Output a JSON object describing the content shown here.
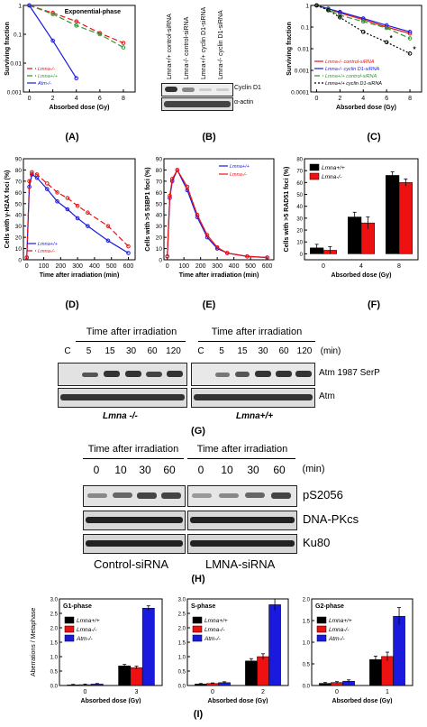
{
  "panels": {
    "A": {
      "label": "(A)",
      "chart_index": 0
    },
    "B": {
      "label": "(B)",
      "lanes": [
        "Lmna+/+ control-siRNA",
        "Lmna-/- control-siRNA",
        "Lmna+/+ cyclin D1-siRNA",
        "Lmna-/- cyclin D1-siRNA"
      ],
      "rows": [
        "Cyclin D1",
        "α-actin"
      ]
    },
    "C": {
      "label": "(C)",
      "chart_index": 1
    },
    "D": {
      "label": "(D)",
      "chart_index": 2
    },
    "E": {
      "label": "(E)",
      "chart_index": 3
    },
    "F": {
      "label": "(F)",
      "chart_index": 4
    },
    "G": {
      "label": "(G)",
      "title_left": "Time after irradiation",
      "title_right": "Time after irradiation",
      "lanes_left": [
        "C",
        "5",
        "15",
        "30",
        "60",
        "120"
      ],
      "lanes_right": [
        "C",
        "5",
        "15",
        "30",
        "60",
        "120"
      ],
      "unit": "(min)",
      "rows": [
        "Atm 1987 SerP",
        "Atm"
      ],
      "cond_left": "Lmna -/-",
      "cond_right": "Lmna+/+"
    },
    "H": {
      "label": "(H)",
      "title_left": "Time after irradiation",
      "title_right": "Time after irradiation",
      "lanes_left": [
        "0",
        "10",
        "30",
        "60"
      ],
      "lanes_right": [
        "0",
        "10",
        "30",
        "60"
      ],
      "unit": "(min)",
      "rows": [
        "pS2056",
        "DNA-PKcs",
        "Ku80"
      ],
      "cond_left": "Control-siRNA",
      "cond_right": "LMNA-siRNA"
    },
    "I": {
      "label": "(I)",
      "ylabel": "Aberrations / Metaphase"
    }
  },
  "colors": {
    "lmna_ko": "#ee1111",
    "lmna_wt": "#000000",
    "atm": "#1a1adf",
    "green": "#2e9a2e",
    "blue": "#1a1adf"
  },
  "chart_data": [
    {
      "type": "line",
      "title": "Exponential-phase",
      "xlabel": "Absorbed dose (Gy)",
      "ylabel": "Surviving fraction",
      "yscale": "log",
      "ylim": [
        0.001,
        1
      ],
      "xlim": [
        -0.5,
        9
      ],
      "x_ticks": [
        0,
        2,
        4,
        6,
        8
      ],
      "y_ticks": [
        "0.001",
        "0.01",
        "0.1",
        "1"
      ],
      "legend": "bottom-left",
      "series": [
        {
          "name": "Lmna-/-",
          "color": "#ee1111",
          "dash": "6,3",
          "x": [
            0,
            2,
            4,
            6,
            8
          ],
          "y": [
            1.0,
            0.55,
            0.28,
            0.11,
            0.05
          ]
        },
        {
          "name": "Lmna+/+",
          "color": "#2e9a2e",
          "dash": "6,3",
          "x": [
            0,
            2,
            4,
            6,
            8
          ],
          "y": [
            1.0,
            0.5,
            0.2,
            0.1,
            0.035
          ]
        },
        {
          "name": "Atm-/-",
          "color": "#1a1adf",
          "dash": "",
          "x": [
            0,
            2,
            4
          ],
          "y": [
            1.0,
            0.06,
            0.003
          ]
        }
      ]
    },
    {
      "type": "line",
      "title": "",
      "xlabel": "Absorbed dose (Gy)",
      "ylabel": "Surviving fraction",
      "yscale": "log",
      "ylim": [
        0.0001,
        1
      ],
      "xlim": [
        -0.5,
        9
      ],
      "x_ticks": [
        0,
        2,
        4,
        6,
        8
      ],
      "y_ticks": [
        "0.0001",
        "0.001",
        "0.01",
        "0.1",
        "1"
      ],
      "legend": "bottom-left",
      "series": [
        {
          "name": "Lmna-/- control-siRNA",
          "color": "#ee1111",
          "dash": "",
          "x": [
            0,
            1,
            2,
            4,
            6,
            8
          ],
          "y": [
            1.0,
            0.7,
            0.45,
            0.22,
            0.1,
            0.05
          ]
        },
        {
          "name": "Lmna-/- cyclin D1-siRNA",
          "color": "#1a1adf",
          "dash": "",
          "x": [
            0,
            1,
            2,
            4,
            6,
            8
          ],
          "y": [
            1.0,
            0.7,
            0.5,
            0.25,
            0.12,
            0.06
          ]
        },
        {
          "name": "Lmna+/+ control-siRNA",
          "color": "#2e9a2e",
          "dash": "6,3",
          "x": [
            0,
            1,
            2,
            4,
            6,
            8
          ],
          "y": [
            1.0,
            0.65,
            0.35,
            0.18,
            0.09,
            0.03
          ]
        },
        {
          "name": "Lmna+/+ cyclin D1-siRNA",
          "color": "#000000",
          "dash": "2,2",
          "x": [
            0,
            1,
            2,
            4,
            6,
            8
          ],
          "y": [
            1.0,
            0.6,
            0.28,
            0.06,
            0.02,
            0.006
          ]
        }
      ],
      "annotations": [
        "*",
        "*"
      ]
    },
    {
      "type": "line",
      "title": "",
      "xlabel": "Time after irradiation (min)",
      "ylabel": "Cells with γ-H2AX foci (%)",
      "ylim": [
        0,
        90
      ],
      "xlim": [
        -20,
        640
      ],
      "x_ticks": [
        0,
        100,
        200,
        300,
        400,
        500,
        600
      ],
      "y_ticks": [
        0,
        10,
        20,
        30,
        40,
        50,
        60,
        70,
        80,
        90
      ],
      "legend": "bottom-left",
      "series": [
        {
          "name": "Lmna+/+",
          "color": "#1a1adf",
          "dash": "",
          "x": [
            0,
            15,
            30,
            60,
            120,
            180,
            240,
            300,
            360,
            480,
            600
          ],
          "y": [
            2,
            65,
            76,
            73,
            63,
            52,
            45,
            37,
            30,
            17,
            6
          ]
        },
        {
          "name": "Lmna-/-",
          "color": "#ee1111",
          "dash": "6,3",
          "x": [
            0,
            15,
            30,
            60,
            120,
            180,
            240,
            300,
            360,
            480,
            600
          ],
          "y": [
            2,
            70,
            78,
            76,
            68,
            60,
            55,
            48,
            42,
            30,
            12
          ]
        }
      ]
    },
    {
      "type": "line",
      "title": "",
      "xlabel": "Time after irradiation (min)",
      "ylabel": "Cells with >5 53BP1 foci (%)",
      "ylim": [
        0,
        90
      ],
      "xlim": [
        -20,
        640
      ],
      "x_ticks": [
        0,
        100,
        200,
        300,
        400,
        500,
        600
      ],
      "y_ticks": [
        0,
        10,
        20,
        30,
        40,
        50,
        60,
        70,
        80,
        90
      ],
      "legend": "top-right",
      "series": [
        {
          "name": "Lmna+/+",
          "color": "#1a1adf",
          "dash": "",
          "x": [
            0,
            15,
            30,
            60,
            120,
            180,
            240,
            300,
            360,
            480,
            600
          ],
          "y": [
            3,
            55,
            70,
            80,
            62,
            38,
            20,
            10,
            6,
            3,
            2
          ]
        },
        {
          "name": "Lmna-/-",
          "color": "#ee1111",
          "dash": "",
          "x": [
            0,
            15,
            30,
            60,
            120,
            180,
            240,
            300,
            360,
            480,
            600
          ],
          "y": [
            3,
            57,
            72,
            80,
            65,
            40,
            22,
            11,
            6,
            3,
            2
          ]
        }
      ]
    },
    {
      "type": "bar",
      "title": "",
      "xlabel": "Absorbed dose (Gy)",
      "ylabel": "Cells with >5 RAD51 foci (%)",
      "categories": [
        "0",
        "4",
        "8"
      ],
      "ylim": [
        -5,
        80
      ],
      "y_ticks": [
        0,
        10,
        20,
        30,
        40,
        50,
        60,
        70,
        80
      ],
      "legend": "top-left",
      "series": [
        {
          "name": "Lmna+/+",
          "color": "#000000",
          "values": [
            5,
            31,
            66
          ],
          "errors": [
            3,
            4,
            3
          ]
        },
        {
          "name": "Lmna-/-",
          "color": "#ee1111",
          "values": [
            3,
            26,
            60
          ],
          "errors": [
            3,
            5,
            3
          ]
        }
      ]
    },
    {
      "type": "bar",
      "title": "G1-phase",
      "xlabel": "Absorbed dose (Gy)",
      "ylabel": "",
      "categories": [
        "0",
        "3"
      ],
      "ylim": [
        0,
        3
      ],
      "y_ticks": [
        "0.0",
        "0.5",
        "1.0",
        "1.5",
        "2.0",
        "2.5",
        "3.0"
      ],
      "legend": "top-left",
      "series": [
        {
          "name": "Lmna+/+",
          "color": "#000000",
          "values": [
            0.02,
            0.68
          ],
          "errors": [
            0.02,
            0.05
          ]
        },
        {
          "name": "Lmna-/-",
          "color": "#ee1111",
          "values": [
            0.03,
            0.62
          ],
          "errors": [
            0.02,
            0.05
          ]
        },
        {
          "name": "Atm-/-",
          "color": "#1a1adf",
          "values": [
            0.05,
            2.68
          ],
          "errors": [
            0.02,
            0.08
          ]
        }
      ]
    },
    {
      "type": "bar",
      "title": "S-phase",
      "xlabel": "Absorbed dose (Gy)",
      "ylabel": "",
      "categories": [
        "0",
        "2"
      ],
      "ylim": [
        0,
        3
      ],
      "y_ticks": [
        "0.0",
        "0.5",
        "1.0",
        "1.5",
        "2.0",
        "2.5",
        "3.0"
      ],
      "legend": "top-left",
      "series": [
        {
          "name": "Lmna+/+",
          "color": "#000000",
          "values": [
            0.05,
            0.85
          ],
          "errors": [
            0.02,
            0.08
          ]
        },
        {
          "name": "Lmna-/-",
          "color": "#ee1111",
          "values": [
            0.07,
            1.0
          ],
          "errors": [
            0.02,
            0.1
          ]
        },
        {
          "name": "Atm-/-",
          "color": "#1a1adf",
          "values": [
            0.1,
            2.8
          ],
          "errors": [
            0.03,
            0.2
          ]
        }
      ]
    },
    {
      "type": "bar",
      "title": "G2-phase",
      "xlabel": "Absorbed dose (Gy)",
      "ylabel": "",
      "categories": [
        "0",
        "1"
      ],
      "ylim": [
        0,
        2
      ],
      "y_ticks": [
        "0.0",
        "0.5",
        "1.0",
        "1.5",
        "2.0"
      ],
      "legend": "top-left",
      "series": [
        {
          "name": "Lmna+/+",
          "color": "#000000",
          "values": [
            0.05,
            0.6
          ],
          "errors": [
            0.02,
            0.08
          ]
        },
        {
          "name": "Lmna-/-",
          "color": "#ee1111",
          "values": [
            0.07,
            0.67
          ],
          "errors": [
            0.02,
            0.1
          ]
        },
        {
          "name": "Atm-/-",
          "color": "#1a1adf",
          "values": [
            0.1,
            1.6
          ],
          "errors": [
            0.03,
            0.2
          ]
        }
      ]
    }
  ]
}
